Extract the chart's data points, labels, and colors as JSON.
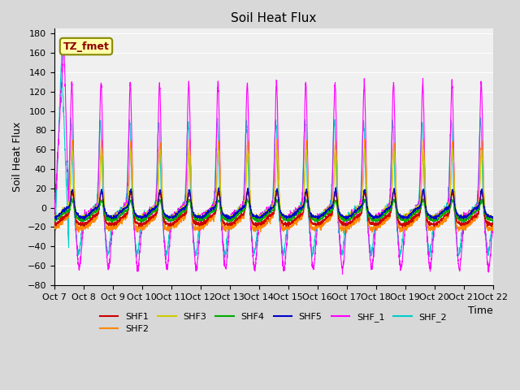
{
  "title": "Soil Heat Flux",
  "ylabel": "Soil Heat Flux",
  "xlabel": "Time",
  "xlim": [
    0,
    15
  ],
  "ylim": [
    -80,
    185
  ],
  "yticks": [
    -80,
    -60,
    -40,
    -20,
    0,
    20,
    40,
    60,
    80,
    100,
    120,
    140,
    160,
    180
  ],
  "xtick_labels": [
    "Oct 7",
    "Oct 8",
    "Oct 9",
    "Oct 10",
    "Oct 11",
    "Oct 12",
    "Oct 13",
    "Oct 14",
    "Oct 15",
    "Oct 16",
    "Oct 17",
    "Oct 18",
    "Oct 19",
    "Oct 20",
    "Oct 21",
    "Oct 22"
  ],
  "colors": {
    "SHF1": "#cc0000",
    "SHF2": "#ff8800",
    "SHF3": "#cccc00",
    "SHF4": "#00aa00",
    "SHF5": "#0000cc",
    "SHF_1": "#ff00ff",
    "SHF_2": "#00cccc"
  },
  "annotation_text": "TZ_fmet",
  "annotation_bg": "#ffffaa",
  "annotation_border": "#888800",
  "plot_bg": "#f0f0f0",
  "grid_color": "#ffffff",
  "n_days": 15,
  "pts_per_day": 200
}
